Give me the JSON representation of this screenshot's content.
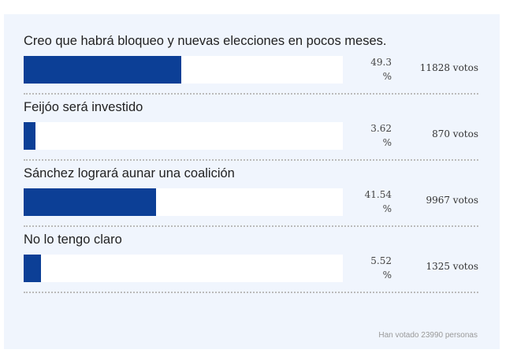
{
  "poll": {
    "options": [
      {
        "label": "Creo que habrá bloqueo y nuevas elecciones en pocos meses.",
        "percent": 49.3,
        "percent_text": "49.3",
        "percent_symbol": "%",
        "votes": "11828 votos"
      },
      {
        "label": "Feijóo será investido",
        "percent": 3.62,
        "percent_text": "3.62",
        "percent_symbol": "%",
        "votes": "870 votos"
      },
      {
        "label": "Sánchez logrará aunar una coalición",
        "percent": 41.54,
        "percent_text": "41.54",
        "percent_symbol": "%",
        "votes": "9967 votos"
      },
      {
        "label": "No lo tengo claro",
        "percent": 5.52,
        "percent_text": "5.52",
        "percent_symbol": "%",
        "votes": "1325 votos"
      }
    ],
    "total": "Han votado 23990 personas",
    "bar_color": "#0c3f96"
  }
}
